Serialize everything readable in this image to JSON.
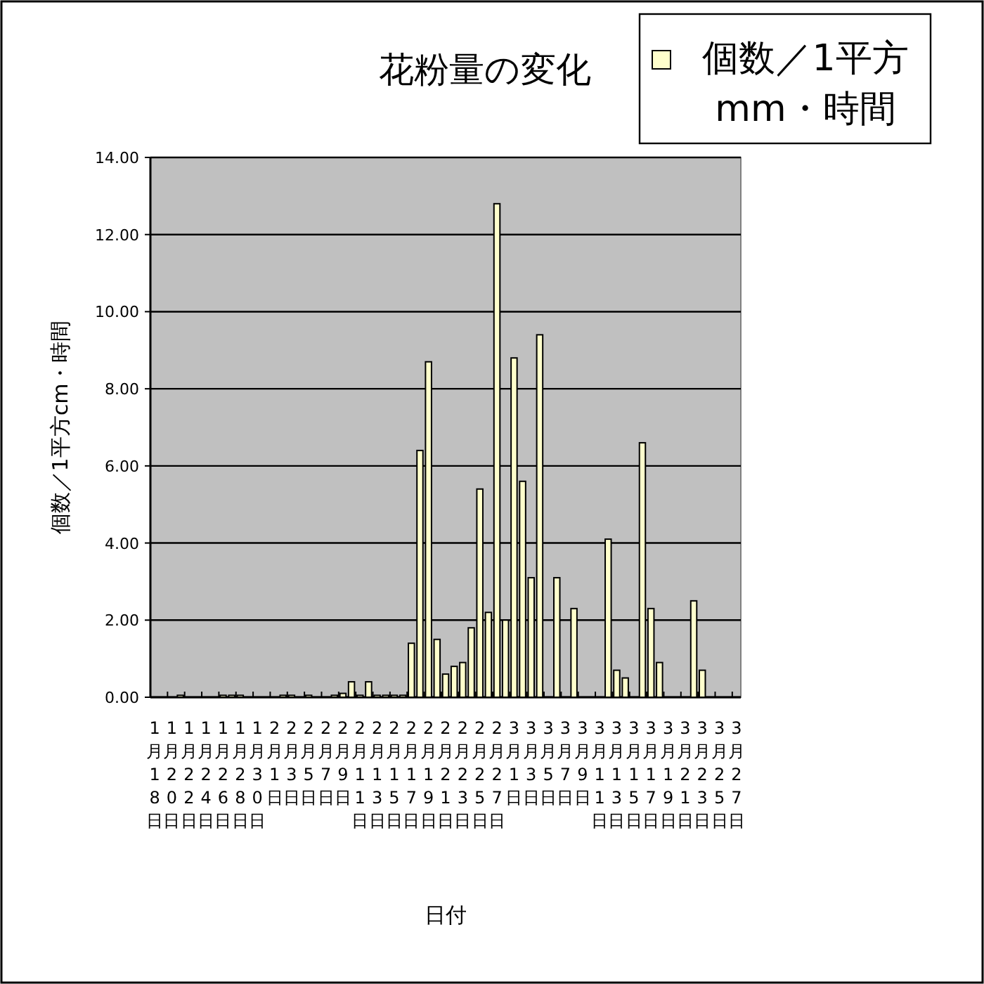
{
  "chart_data": {
    "type": "bar",
    "title": "花粉量の変化",
    "xlabel": "日付",
    "ylabel": "個数／1平方cm・時間",
    "categories": [
      "1月18日",
      null,
      "1月20日",
      null,
      "1月22日",
      null,
      "1月24日",
      null,
      "1月26日",
      null,
      "1月28日",
      null,
      "1月30日",
      null,
      "2月1日",
      null,
      "2月3日",
      null,
      "2月5日",
      null,
      "2月7日",
      null,
      "2月9日",
      null,
      "2月11日",
      null,
      "2月13日",
      null,
      "2月15日",
      null,
      "2月17日",
      null,
      "2月19日",
      null,
      "2月21日",
      null,
      "2月23日",
      null,
      "2月25日",
      null,
      "2月27日",
      null,
      "3月1日",
      null,
      "3月3日",
      null,
      "3月5日",
      null,
      "3月7日",
      null,
      "3月9日",
      null,
      "3月11日",
      null,
      "3月13日",
      null,
      "3月15日",
      null,
      "3月17日",
      null,
      "3月19日",
      null,
      "3月21日",
      null,
      "3月23日",
      null,
      "3月25日",
      null,
      "3月27日"
    ],
    "series": [
      {
        "name": "個数／1平方mm・時間",
        "color": "#ffffcc",
        "values": [
          0,
          0,
          0,
          0.05,
          0,
          0,
          0,
          0,
          0.05,
          0.05,
          0.05,
          0,
          0,
          0,
          0,
          0.05,
          0.05,
          0,
          0.05,
          0,
          0,
          0.05,
          0.1,
          0.4,
          0.05,
          0.4,
          0.05,
          0.05,
          0.05,
          0.05,
          1.4,
          6.4,
          8.7,
          1.5,
          0.6,
          0.8,
          0.9,
          1.8,
          5.4,
          2.2,
          12.8,
          2.0,
          8.8,
          5.6,
          3.1,
          9.4,
          0,
          3.1,
          0,
          2.3,
          0,
          0,
          0,
          4.1,
          0.7,
          0.5,
          0,
          6.6,
          2.3,
          0.9,
          0,
          0,
          0,
          2.5,
          0.7,
          0,
          0,
          0,
          0
        ]
      }
    ],
    "ylim": [
      0,
      14
    ],
    "yticks": [
      {
        "value": 0,
        "label": "0.00"
      },
      {
        "value": 2,
        "label": "2.00"
      },
      {
        "value": 4,
        "label": "4.00"
      },
      {
        "value": 6,
        "label": "6.00"
      },
      {
        "value": 8,
        "label": "8.00"
      },
      {
        "value": 10,
        "label": "10.00"
      },
      {
        "value": 12,
        "label": "12.00"
      },
      {
        "value": 14,
        "label": "14.00"
      }
    ],
    "grid": "y",
    "legend": "top right"
  }
}
